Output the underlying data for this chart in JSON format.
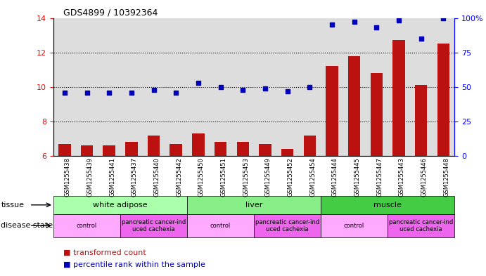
{
  "title": "GDS4899 / 10392364",
  "samples": [
    "GSM1255438",
    "GSM1255439",
    "GSM1255441",
    "GSM1255437",
    "GSM1255440",
    "GSM1255442",
    "GSM1255450",
    "GSM1255451",
    "GSM1255453",
    "GSM1255449",
    "GSM1255452",
    "GSM1255454",
    "GSM1255444",
    "GSM1255445",
    "GSM1255447",
    "GSM1255443",
    "GSM1255446",
    "GSM1255448"
  ],
  "transformed_count": [
    6.7,
    6.6,
    6.6,
    6.8,
    7.2,
    6.7,
    7.3,
    6.8,
    6.8,
    6.7,
    6.4,
    7.2,
    11.2,
    11.8,
    10.8,
    12.7,
    10.1,
    12.5
  ],
  "percentile_rank": [
    46,
    46,
    46,
    46,
    48,
    46,
    53,
    50,
    48,
    49,
    47,
    50,
    95,
    97,
    93,
    98,
    85,
    100
  ],
  "ylim_left": [
    6,
    14
  ],
  "ylim_right": [
    0,
    100
  ],
  "yticks_left": [
    6,
    8,
    10,
    12,
    14
  ],
  "yticks_right": [
    0,
    25,
    50,
    75,
    100
  ],
  "ytick_labels_right": [
    "0",
    "25",
    "50",
    "75",
    "100%"
  ],
  "bar_color": "#bb1111",
  "dot_color": "#0000bb",
  "tissue_groups": [
    {
      "label": "white adipose",
      "start": 0,
      "end": 5,
      "color": "#aaffaa"
    },
    {
      "label": "liver",
      "start": 6,
      "end": 11,
      "color": "#88ee88"
    },
    {
      "label": "muscle",
      "start": 12,
      "end": 17,
      "color": "#44cc44"
    }
  ],
  "disease_groups": [
    {
      "label": "control",
      "start": 0,
      "end": 2
    },
    {
      "label": "pancreatic cancer-ind\nuced cachexia",
      "start": 3,
      "end": 5
    },
    {
      "label": "control",
      "start": 6,
      "end": 8
    },
    {
      "label": "pancreatic cancer-ind\nuced cachexia",
      "start": 9,
      "end": 11
    },
    {
      "label": "control",
      "start": 12,
      "end": 14
    },
    {
      "label": "pancreatic cancer-ind\nuced cachexia",
      "start": 15,
      "end": 17
    }
  ],
  "disease_control_color": "#ffaaff",
  "disease_cancer_color": "#ee66ee",
  "legend_items": [
    {
      "label": "transformed count",
      "color": "#bb1111"
    },
    {
      "label": "percentile rank within the sample",
      "color": "#0000bb"
    }
  ],
  "bar_bottom": 6.0,
  "sample_bg_color": "#dddddd",
  "plot_bg_color": "#ffffff"
}
